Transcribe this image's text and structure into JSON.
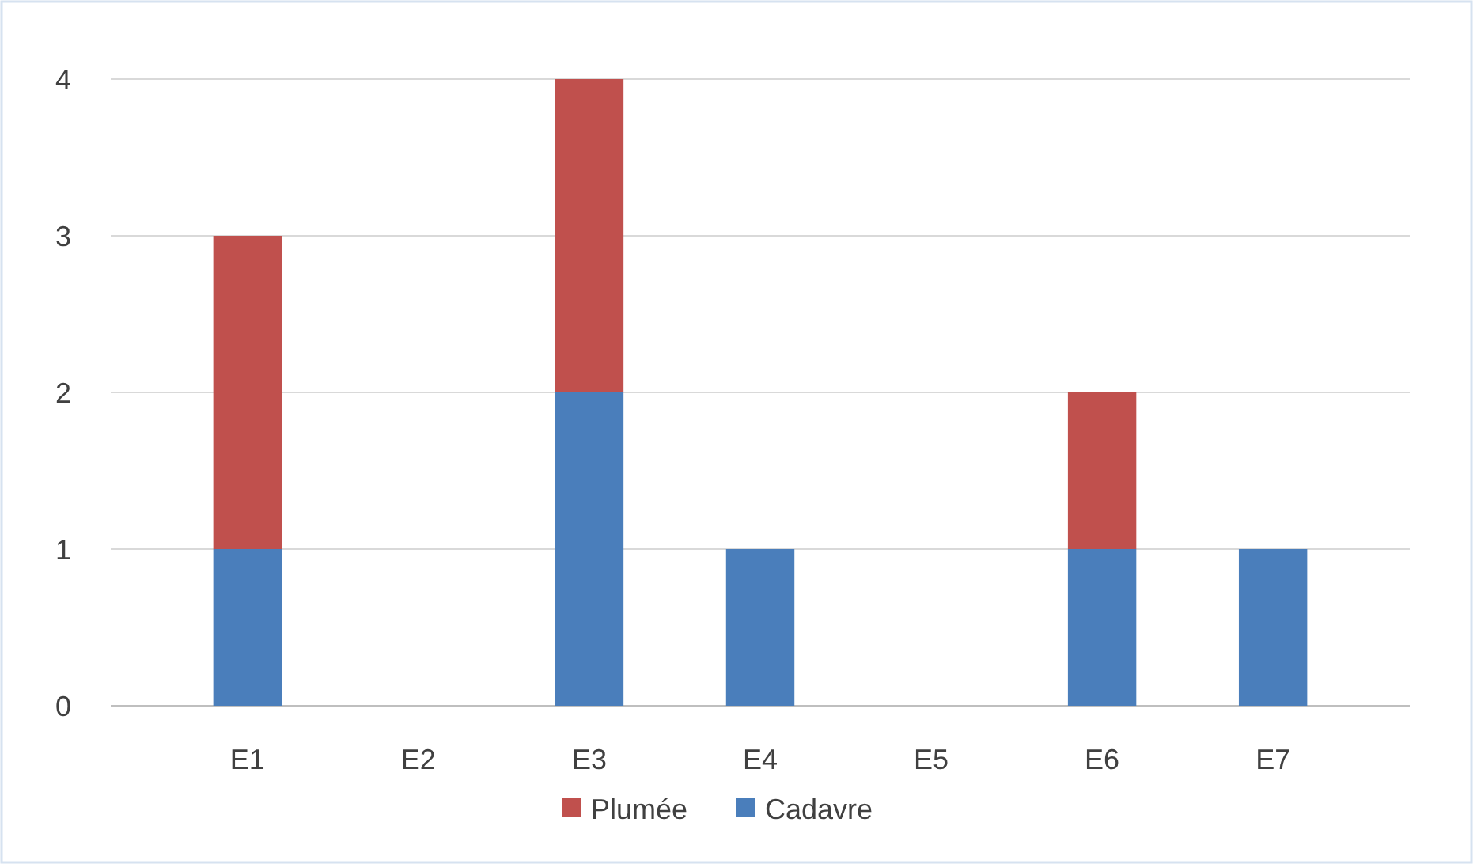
{
  "chart_data": {
    "type": "bar",
    "stacked": true,
    "categories": [
      "E1",
      "E2",
      "E3",
      "E4",
      "E5",
      "E6",
      "E7"
    ],
    "series": [
      {
        "name": "Cadavre",
        "color": "#4a7ebb",
        "values": [
          1,
          0,
          2,
          1,
          0,
          1,
          1
        ]
      },
      {
        "name": "Plumée",
        "color": "#c0504d",
        "values": [
          2,
          0,
          2,
          0,
          0,
          1,
          0
        ]
      }
    ],
    "ylim": [
      0,
      4
    ],
    "yticks": [
      0,
      1,
      2,
      3,
      4
    ],
    "grid": "y",
    "legend": "bottom"
  }
}
